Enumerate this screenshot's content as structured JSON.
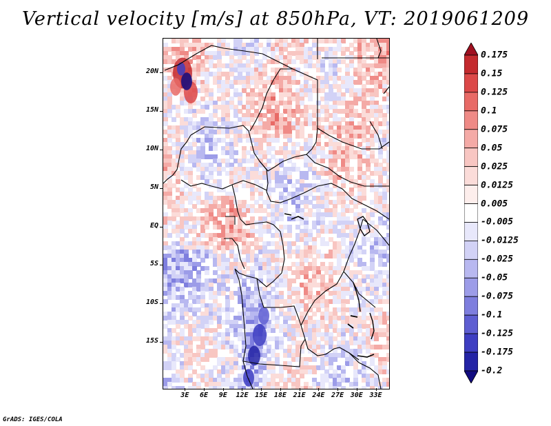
{
  "title": "Vertical velocity [m/s] at 850hPa, VT: 2019061209",
  "footer": "GrADS: IGES/COLA",
  "map": {
    "lat_range": [
      -21,
      24.5
    ],
    "lon_range": [
      -0.5,
      35
    ],
    "lat_labels": [
      {
        "text": "20N",
        "lat": 20
      },
      {
        "text": "15N",
        "lat": 15
      },
      {
        "text": "10N",
        "lat": 10
      },
      {
        "text": "5N",
        "lat": 5
      },
      {
        "text": "EQ",
        "lat": 0
      },
      {
        "text": "5S",
        "lat": -5
      },
      {
        "text": "10S",
        "lat": -10
      },
      {
        "text": "15S",
        "lat": -15
      }
    ],
    "lon_labels": [
      {
        "text": "3E",
        "lon": 3
      },
      {
        "text": "6E",
        "lon": 6
      },
      {
        "text": "9E",
        "lon": 9
      },
      {
        "text": "12E",
        "lon": 12
      },
      {
        "text": "15E",
        "lon": 15
      },
      {
        "text": "18E",
        "lon": 18
      },
      {
        "text": "21E",
        "lon": 21
      },
      {
        "text": "24E",
        "lon": 24
      },
      {
        "text": "27E",
        "lon": 27
      },
      {
        "text": "30E",
        "lon": 30
      },
      {
        "text": "33E",
        "lon": 33
      }
    ]
  },
  "colorbar": {
    "levels": [
      "0.175",
      "0.15",
      "0.125",
      "0.1",
      "0.075",
      "0.05",
      "0.025",
      "0.0125",
      "0.005",
      "-0.005",
      "-0.0125",
      "-0.025",
      "-0.05",
      "-0.075",
      "-0.1",
      "-0.125",
      "-0.175",
      "-0.2"
    ],
    "colors": [
      "#a01020",
      "#c42a2e",
      "#dc4848",
      "#e86a66",
      "#ef8a86",
      "#f4aaa6",
      "#f8c6c2",
      "#fbdcd9",
      "#fdeeec",
      "#ffffff",
      "#e8e8fb",
      "#d2d2f6",
      "#b8b8f0",
      "#9c9ce8",
      "#7e7ede",
      "#5e5ed2",
      "#3e3ec2",
      "#2424a6",
      "#120c80"
    ]
  }
}
